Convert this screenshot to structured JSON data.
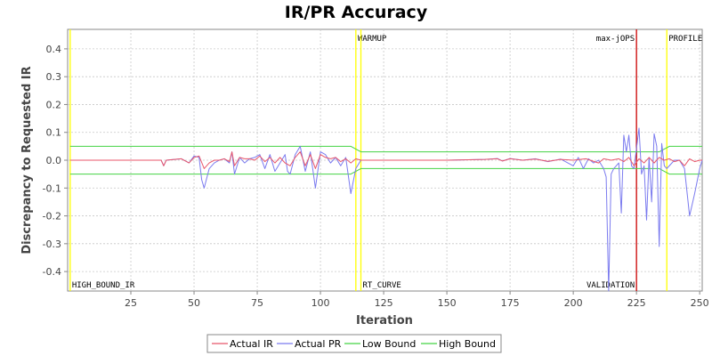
{
  "chart_data": {
    "type": "line",
    "title": "IR/PR Accuracy",
    "xlabel": "Iteration",
    "ylabel": "Discrepancy to Requested IR",
    "xlim": [
      0,
      251
    ],
    "ylim": [
      -0.47,
      0.47
    ],
    "x_ticks": [
      25,
      50,
      75,
      100,
      125,
      150,
      175,
      200,
      225,
      250
    ],
    "y_ticks": [
      0.4,
      0.3,
      0.2,
      0.1,
      0.0,
      -0.1,
      -0.2,
      -0.3,
      -0.4
    ],
    "y_tick_labels": [
      "0.4",
      "0.3",
      "0.2",
      "0.1",
      "0.0",
      "-0.1",
      "-0.2",
      "-0.3",
      "-0.4"
    ],
    "grid": true,
    "legend_position": "bottom",
    "series": [
      {
        "name": "Actual IR",
        "color": "#e8566a",
        "points": [
          [
            1,
            0
          ],
          [
            30,
            0
          ],
          [
            37,
            0
          ],
          [
            38,
            -0.02
          ],
          [
            39,
            0
          ],
          [
            45,
            0.005
          ],
          [
            48,
            -0.01
          ],
          [
            50,
            0.01
          ],
          [
            52,
            0.015
          ],
          [
            54,
            -0.03
          ],
          [
            56,
            -0.01
          ],
          [
            58,
            0
          ],
          [
            60,
            0
          ],
          [
            62,
            0.005
          ],
          [
            64,
            -0.005
          ],
          [
            65,
            0.03
          ],
          [
            66,
            -0.02
          ],
          [
            68,
            0.01
          ],
          [
            70,
            0.005
          ],
          [
            72,
            0.005
          ],
          [
            74,
            0
          ],
          [
            76,
            0.015
          ],
          [
            78,
            -0.005
          ],
          [
            80,
            0.01
          ],
          [
            82,
            -0.01
          ],
          [
            84,
            0.01
          ],
          [
            86,
            -0.01
          ],
          [
            88,
            -0.02
          ],
          [
            90,
            0.01
          ],
          [
            92,
            0.03
          ],
          [
            94,
            -0.02
          ],
          [
            96,
            0.02
          ],
          [
            98,
            -0.03
          ],
          [
            100,
            0.02
          ],
          [
            102,
            0.01
          ],
          [
            104,
            0.005
          ],
          [
            106,
            0.01
          ],
          [
            108,
            -0.005
          ],
          [
            110,
            0.005
          ],
          [
            112,
            -0.01
          ],
          [
            114,
            0.005
          ],
          [
            116,
            0
          ],
          [
            130,
            0
          ],
          [
            150,
            0
          ],
          [
            165,
            0.003
          ],
          [
            170,
            0.005
          ],
          [
            172,
            -0.003
          ],
          [
            175,
            0.005
          ],
          [
            180,
            0
          ],
          [
            185,
            0.004
          ],
          [
            190,
            -0.004
          ],
          [
            195,
            0.003
          ],
          [
            200,
            0
          ],
          [
            205,
            0.005
          ],
          [
            210,
            -0.01
          ],
          [
            212,
            0.005
          ],
          [
            215,
            0
          ],
          [
            218,
            0.005
          ],
          [
            220,
            -0.005
          ],
          [
            222,
            0.01
          ],
          [
            224,
            -0.02
          ],
          [
            226,
            0.005
          ],
          [
            228,
            -0.01
          ],
          [
            230,
            0.01
          ],
          [
            232,
            -0.01
          ],
          [
            234,
            0.01
          ],
          [
            236,
            0
          ],
          [
            238,
            0.005
          ],
          [
            240,
            -0.005
          ],
          [
            242,
            0
          ],
          [
            244,
            -0.02
          ],
          [
            246,
            0.005
          ],
          [
            248,
            -0.005
          ],
          [
            250,
            0
          ],
          [
            251,
            0
          ]
        ]
      },
      {
        "name": "Actual PR",
        "color": "#7b7bef",
        "points": [
          [
            1,
            0
          ],
          [
            30,
            0
          ],
          [
            37,
            0
          ],
          [
            38,
            -0.02
          ],
          [
            39,
            0
          ],
          [
            45,
            0.005
          ],
          [
            48,
            -0.01
          ],
          [
            50,
            0.015
          ],
          [
            52,
            0.01
          ],
          [
            53,
            -0.07
          ],
          [
            54,
            -0.1
          ],
          [
            56,
            -0.03
          ],
          [
            58,
            -0.01
          ],
          [
            60,
            0
          ],
          [
            62,
            0.005
          ],
          [
            64,
            -0.01
          ],
          [
            65,
            0.03
          ],
          [
            66,
            -0.05
          ],
          [
            68,
            0.01
          ],
          [
            70,
            -0.01
          ],
          [
            72,
            0.005
          ],
          [
            74,
            0.01
          ],
          [
            76,
            0.02
          ],
          [
            78,
            -0.03
          ],
          [
            80,
            0.02
          ],
          [
            82,
            -0.04
          ],
          [
            84,
            -0.01
          ],
          [
            86,
            0.02
          ],
          [
            87,
            -0.04
          ],
          [
            88,
            -0.05
          ],
          [
            90,
            0.02
          ],
          [
            92,
            0.05
          ],
          [
            94,
            -0.04
          ],
          [
            96,
            0.03
          ],
          [
            98,
            -0.1
          ],
          [
            100,
            0.03
          ],
          [
            102,
            0.02
          ],
          [
            104,
            -0.01
          ],
          [
            106,
            0.01
          ],
          [
            108,
            -0.02
          ],
          [
            110,
            0.01
          ],
          [
            112,
            -0.12
          ],
          [
            114,
            -0.03
          ],
          [
            116,
            0
          ],
          [
            130,
            0
          ],
          [
            150,
            0
          ],
          [
            165,
            0.003
          ],
          [
            170,
            0.006
          ],
          [
            172,
            -0.003
          ],
          [
            175,
            0.006
          ],
          [
            180,
            0
          ],
          [
            185,
            0.005
          ],
          [
            190,
            -0.005
          ],
          [
            195,
            0.004
          ],
          [
            200,
            -0.02
          ],
          [
            202,
            0.01
          ],
          [
            204,
            -0.03
          ],
          [
            206,
            0.005
          ],
          [
            208,
            -0.01
          ],
          [
            210,
            0
          ],
          [
            212,
            -0.03
          ],
          [
            213,
            -0.06
          ],
          [
            214,
            -0.47
          ],
          [
            215,
            -0.05
          ],
          [
            216,
            -0.03
          ],
          [
            218,
            -0.01
          ],
          [
            219,
            -0.19
          ],
          [
            220,
            0.09
          ],
          [
            221,
            0.03
          ],
          [
            222,
            0.09
          ],
          [
            223,
            -0.02
          ],
          [
            224,
            -0.03
          ],
          [
            226,
            0.115
          ],
          [
            227,
            -0.05
          ],
          [
            228,
            -0.02
          ],
          [
            229,
            -0.215
          ],
          [
            230,
            0.01
          ],
          [
            231,
            -0.15
          ],
          [
            232,
            0.095
          ],
          [
            233,
            0.05
          ],
          [
            234,
            -0.31
          ],
          [
            235,
            0.06
          ],
          [
            236,
            -0.02
          ],
          [
            237,
            -0.03
          ],
          [
            240,
            0
          ],
          [
            242,
            0
          ],
          [
            244,
            -0.03
          ],
          [
            246,
            -0.2
          ],
          [
            248,
            -0.12
          ],
          [
            250,
            -0.03
          ],
          [
            251,
            0
          ]
        ]
      },
      {
        "name": "Low Bound",
        "color": "#44d344",
        "points": [
          [
            1,
            -0.05
          ],
          [
            112,
            -0.05
          ],
          [
            116,
            -0.03
          ],
          [
            234,
            -0.03
          ],
          [
            238,
            -0.05
          ],
          [
            251,
            -0.05
          ]
        ]
      },
      {
        "name": "High Bound",
        "color": "#44d344",
        "points": [
          [
            1,
            0.05
          ],
          [
            112,
            0.05
          ],
          [
            116,
            0.03
          ],
          [
            234,
            0.03
          ],
          [
            238,
            0.05
          ],
          [
            251,
            0.05
          ]
        ]
      }
    ],
    "markers": [
      {
        "x": 1,
        "color": "#ffff00",
        "top_label": "",
        "bottom_label": "HIGH_BOUND_IR",
        "label_side": "right"
      },
      {
        "x": 114,
        "color": "#ffff00",
        "top_label": "WARMUP",
        "bottom_label": "",
        "label_side": "right"
      },
      {
        "x": 116,
        "color": "#ffff00",
        "top_label": "",
        "bottom_label": "RT_CURVE",
        "label_side": "right"
      },
      {
        "x": 225,
        "color": "#cc0000",
        "top_label": "max-jOPS",
        "bottom_label": "VALIDATION",
        "label_side": "left"
      },
      {
        "x": 237,
        "color": "#ffff00",
        "top_label": "PROFILE",
        "bottom_label": "",
        "label_side": "right"
      }
    ]
  }
}
